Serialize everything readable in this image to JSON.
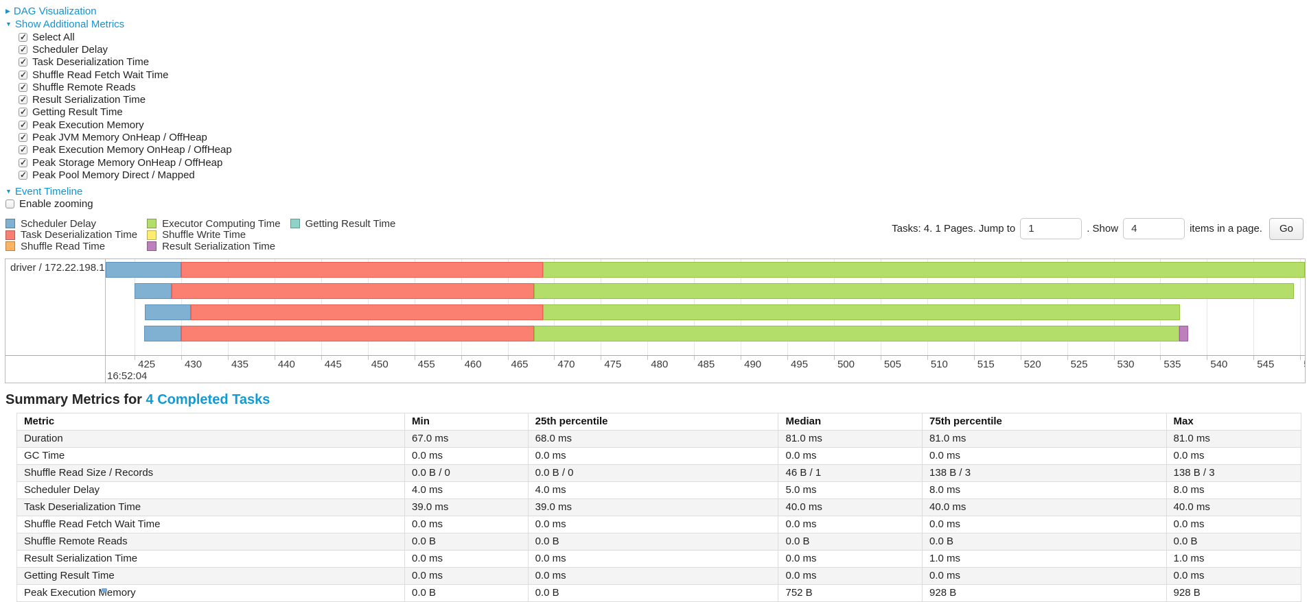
{
  "toggles": {
    "dag": {
      "label": "DAG Visualization",
      "state": "collapsed"
    },
    "metrics": {
      "label": "Show Additional Metrics",
      "state": "expanded"
    },
    "timeline": {
      "label": "Event Timeline",
      "state": "expanded"
    }
  },
  "metric_checkboxes": [
    {
      "label": "Select All",
      "checked": true
    },
    {
      "label": "Scheduler Delay",
      "checked": true
    },
    {
      "label": "Task Deserialization Time",
      "checked": true
    },
    {
      "label": "Shuffle Read Fetch Wait Time",
      "checked": true
    },
    {
      "label": "Shuffle Remote Reads",
      "checked": true
    },
    {
      "label": "Result Serialization Time",
      "checked": true
    },
    {
      "label": "Getting Result Time",
      "checked": true
    },
    {
      "label": "Peak Execution Memory",
      "checked": true
    },
    {
      "label": "Peak JVM Memory OnHeap / OffHeap",
      "checked": true
    },
    {
      "label": "Peak Execution Memory OnHeap / OffHeap",
      "checked": true
    },
    {
      "label": "Peak Storage Memory OnHeap / OffHeap",
      "checked": true
    },
    {
      "label": "Peak Pool Memory Direct / Mapped",
      "checked": true
    }
  ],
  "enable_zooming": {
    "label": "Enable zooming",
    "checked": false
  },
  "pagination": {
    "prefix": "Tasks: 4. 1 Pages. Jump to",
    "jump_value": "1",
    "mid": ". Show",
    "show_value": "4",
    "suffix": "items in a page.",
    "go_label": "Go"
  },
  "chart_data": {
    "type": "bar",
    "variant": "horizontal-stacked-event-timeline",
    "title": "Event Timeline",
    "group_label": "driver / 172.22.198.104",
    "x_domain": [
      421.9,
      550.5
    ],
    "x_ticks": {
      "start": 425,
      "end": 550,
      "step": 5
    },
    "x_start_time_label": "16:52:04",
    "grid": true,
    "legend_position": "top-left",
    "legend": [
      {
        "label": "Scheduler Delay",
        "color": "#80B1D3",
        "border": "#5E94BC"
      },
      {
        "label": "Task Deserialization Time",
        "color": "#FB8072",
        "border": "#E86052"
      },
      {
        "label": "Shuffle Read Time",
        "color": "#FDB462",
        "border": "#E0953C"
      },
      {
        "label": "Executor Computing Time",
        "color": "#B3DE69",
        "border": "#92C341"
      },
      {
        "label": "Shuffle Write Time",
        "color": "#FFED6F",
        "border": "#E0CC45"
      },
      {
        "label": "Result Serialization Time",
        "color": "#BC80BD",
        "border": "#A35AA4"
      },
      {
        "label": "Getting Result Time",
        "color": "#8DD3C7",
        "border": "#65B5A6"
      }
    ],
    "legend_layout": [
      [
        0,
        1,
        2
      ],
      [
        3,
        4,
        5
      ],
      [
        6
      ]
    ],
    "tasks": [
      {
        "segments": [
          {
            "metric": "Scheduler Delay",
            "start": 421.9,
            "end": 430.0
          },
          {
            "metric": "Task Deserialization Time",
            "start": 430.0,
            "end": 468.8
          },
          {
            "metric": "Executor Computing Time",
            "start": 468.8,
            "end": 550.5
          }
        ]
      },
      {
        "segments": [
          {
            "metric": "Scheduler Delay",
            "start": 425.0,
            "end": 429.0
          },
          {
            "metric": "Task Deserialization Time",
            "start": 429.0,
            "end": 467.8
          },
          {
            "metric": "Executor Computing Time",
            "start": 467.8,
            "end": 549.3
          }
        ]
      },
      {
        "segments": [
          {
            "metric": "Scheduler Delay",
            "start": 426.1,
            "end": 431.0
          },
          {
            "metric": "Task Deserialization Time",
            "start": 431.0,
            "end": 468.8
          },
          {
            "metric": "Executor Computing Time",
            "start": 468.8,
            "end": 537.1
          }
        ]
      },
      {
        "segments": [
          {
            "metric": "Scheduler Delay",
            "start": 426.0,
            "end": 430.0
          },
          {
            "metric": "Task Deserialization Time",
            "start": 430.0,
            "end": 467.8
          },
          {
            "metric": "Executor Computing Time",
            "start": 467.8,
            "end": 537.0
          },
          {
            "metric": "Result Serialization Time",
            "start": 537.0,
            "end": 538.0
          }
        ]
      }
    ]
  },
  "summary": {
    "heading_prefix": "Summary Metrics for ",
    "heading_link": "4 Completed Tasks",
    "table": {
      "columns": [
        "Metric",
        "Min",
        "25th percentile",
        "Median",
        "75th percentile",
        "Max"
      ],
      "rows": [
        [
          "Duration",
          "67.0 ms",
          "68.0 ms",
          "81.0 ms",
          "81.0 ms",
          "81.0 ms"
        ],
        [
          "GC Time",
          "0.0 ms",
          "0.0 ms",
          "0.0 ms",
          "0.0 ms",
          "0.0 ms"
        ],
        [
          "Shuffle Read Size / Records",
          "0.0 B / 0",
          "0.0 B / 0",
          "46 B / 1",
          "138 B / 3",
          "138 B / 3"
        ],
        [
          "Scheduler Delay",
          "4.0 ms",
          "4.0 ms",
          "5.0 ms",
          "8.0 ms",
          "8.0 ms"
        ],
        [
          "Task Deserialization Time",
          "39.0 ms",
          "39.0 ms",
          "40.0 ms",
          "40.0 ms",
          "40.0 ms"
        ],
        [
          "Shuffle Read Fetch Wait Time",
          "0.0 ms",
          "0.0 ms",
          "0.0 ms",
          "0.0 ms",
          "0.0 ms"
        ],
        [
          "Shuffle Remote Reads",
          "0.0 B",
          "0.0 B",
          "0.0 B",
          "0.0 B",
          "0.0 B"
        ],
        [
          "Result Serialization Time",
          "0.0 ms",
          "0.0 ms",
          "0.0 ms",
          "1.0 ms",
          "1.0 ms"
        ],
        [
          "Getting Result Time",
          "0.0 ms",
          "0.0 ms",
          "0.0 ms",
          "0.0 ms",
          "0.0 ms"
        ],
        [
          "Peak Execution Memory",
          "0.0 B",
          "0.0 B",
          "752 B",
          "928 B",
          "928 B"
        ]
      ]
    }
  },
  "colors": {
    "link": "#1492d2",
    "heading_link": "#0f9bd8"
  }
}
